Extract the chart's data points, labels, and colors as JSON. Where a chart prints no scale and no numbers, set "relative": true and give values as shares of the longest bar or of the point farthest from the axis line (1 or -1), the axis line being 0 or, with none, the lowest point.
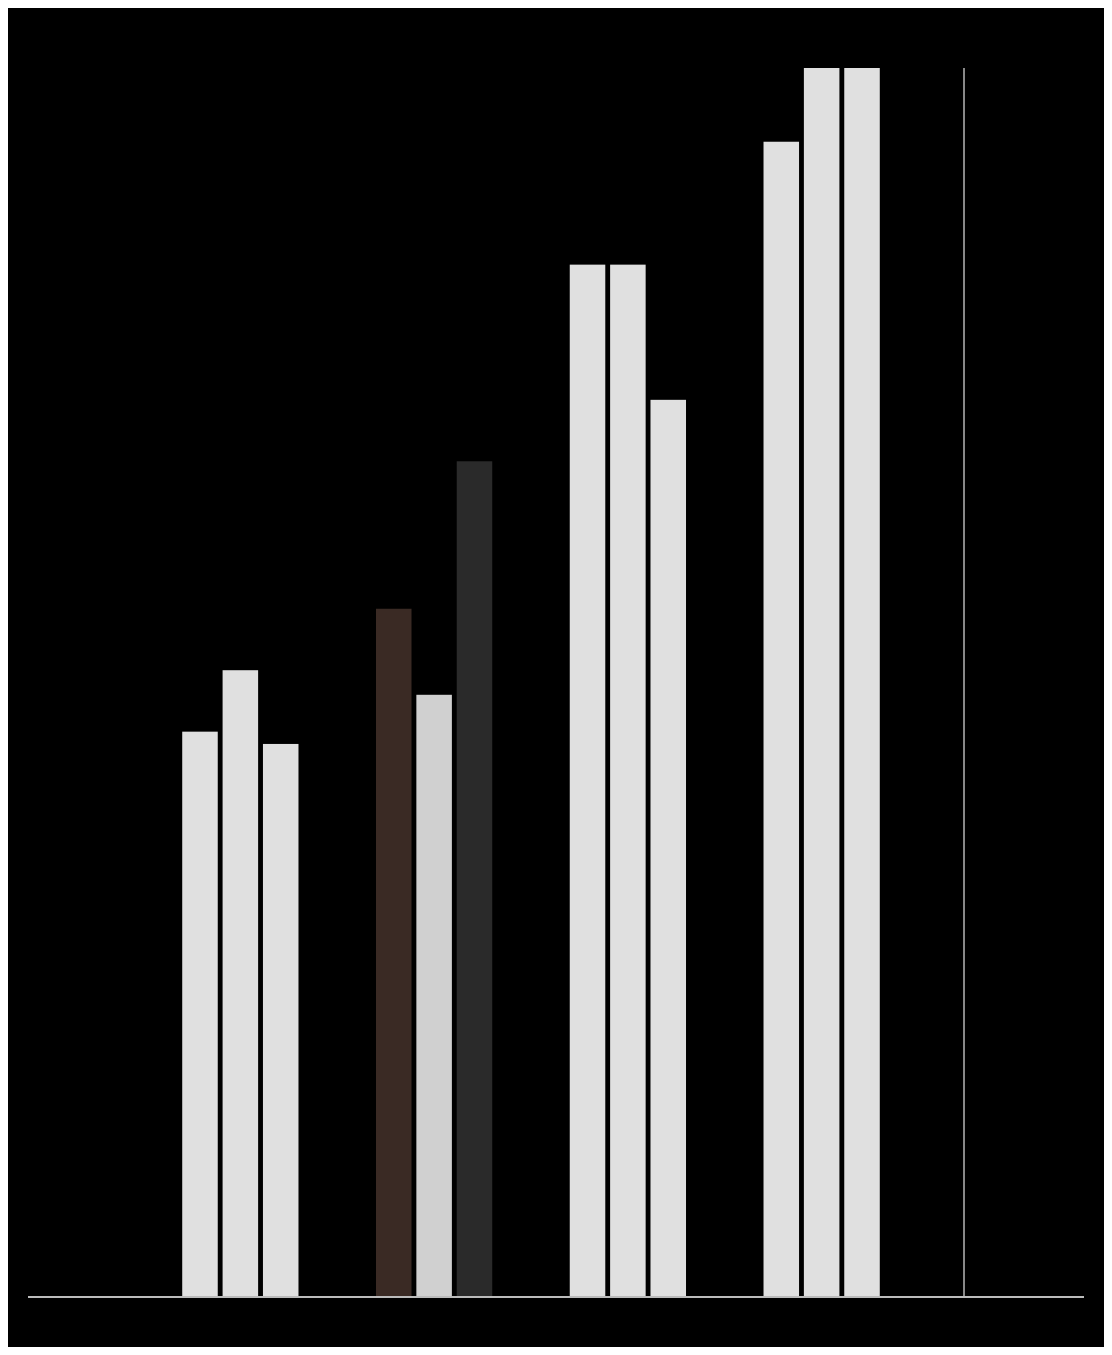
{
  "chart_data": {
    "type": "bar",
    "relative": true,
    "categories": [
      null,
      null,
      null,
      null
    ],
    "series": [
      {
        "colors": [
          "#e0e0e0",
          "#3a2a24",
          "#e0e0e0",
          "#e0e0e0"
        ],
        "values": [
          0.46,
          0.56,
          0.84,
          0.94
        ]
      },
      {
        "colors": [
          "#e0e0e0",
          "#d0d0d0",
          "#e0e0e0",
          "#e0e0e0"
        ],
        "values": [
          0.51,
          0.49,
          0.84,
          1
        ]
      },
      {
        "colors": [
          "#e0e0e0",
          "#2a2a2a",
          "#e0e0e0",
          "#e0e0e0"
        ],
        "values": [
          0.45,
          0.68,
          0.73,
          1
        ]
      }
    ]
  }
}
